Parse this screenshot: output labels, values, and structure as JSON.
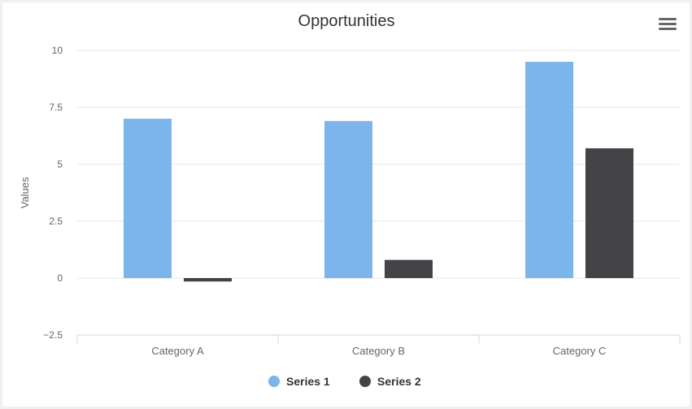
{
  "chart_data": {
    "type": "bar",
    "title": "Opportunities",
    "ylabel": "Values",
    "xlabel": "",
    "categories": [
      "Category A",
      "Category B",
      "Category C"
    ],
    "series": [
      {
        "name": "Series 1",
        "color": "#7cb5ec",
        "values": [
          7.0,
          6.9,
          9.5
        ]
      },
      {
        "name": "Series 2",
        "color": "#434348",
        "values": [
          -0.15,
          0.8,
          5.7
        ]
      }
    ],
    "ylim": [
      -2.5,
      10
    ],
    "yticks": [
      "−2.5",
      "0",
      "2.5",
      "5",
      "7.5",
      "10"
    ],
    "ytick_values": [
      -2.5,
      0,
      2.5,
      5,
      7.5,
      10
    ],
    "grid": true,
    "legend": "bottom-center"
  },
  "menu_icon": "hamburger-menu-icon"
}
